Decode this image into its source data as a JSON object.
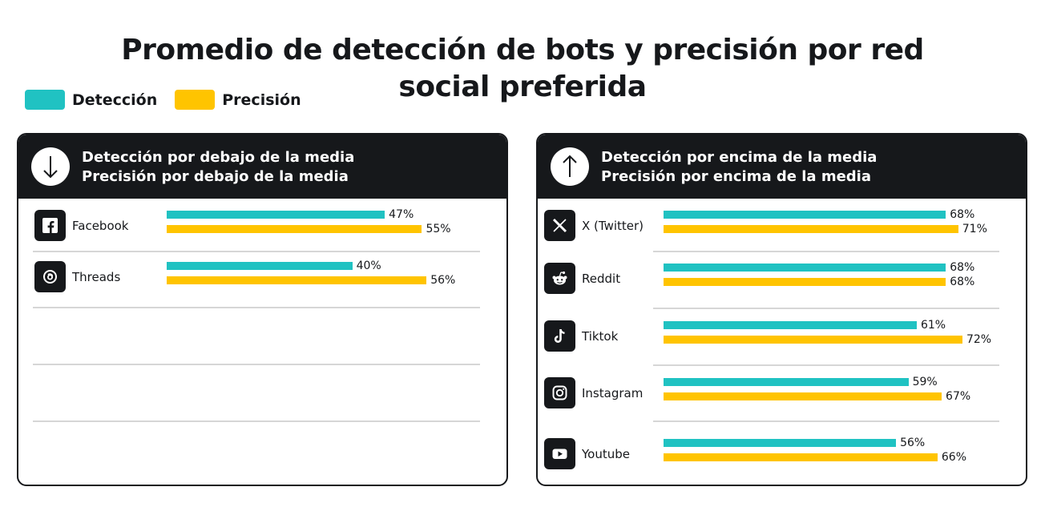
{
  "title": {
    "line1": "Promedio de detección de bots y precisión por red",
    "line2": "social preferida"
  },
  "legend": [
    {
      "label": "Detección",
      "color": "#20c2c2"
    },
    {
      "label": "Precisión",
      "color": "#ffc400"
    }
  ],
  "panels": [
    {
      "header_line1": "Detección por debajo de la media",
      "header_line2": "Precisión por debajo de la media",
      "header_icon": "arrow-down-icon"
    },
    {
      "header_line1": "Detección por encima de la media",
      "header_line2": "Precisión por encima de la media",
      "header_icon": "arrow-up-icon"
    }
  ],
  "chart_data": {
    "type": "bar",
    "orientation": "horizontal",
    "series_names": [
      "Detección",
      "Precisión"
    ],
    "groups": [
      {
        "name": "Detección por debajo de la media / Precisión por debajo de la media",
        "items": [
          {
            "platform": "Facebook",
            "icon": "facebook-icon",
            "deteccion": 47,
            "precision": 55,
            "deteccion_label": "47%",
            "precision_label": "55%"
          },
          {
            "platform": "Threads",
            "icon": "threads-icon",
            "deteccion": 40,
            "precision": 56,
            "deteccion_label": "40%",
            "precision_label": "56%"
          }
        ]
      },
      {
        "name": "Detección por encima de la media / Precisión por encima de la media",
        "items": [
          {
            "platform": "X (Twitter)",
            "icon": "x-twitter-icon",
            "deteccion": 68,
            "precision": 71,
            "deteccion_label": "68%",
            "precision_label": "71%"
          },
          {
            "platform": "Reddit",
            "icon": "reddit-icon",
            "deteccion": 68,
            "precision": 68,
            "deteccion_label": "68%",
            "precision_label": "68%"
          },
          {
            "platform": "Tiktok",
            "icon": "tiktok-icon",
            "deteccion": 61,
            "precision": 72,
            "deteccion_label": "61%",
            "precision_label": "72%"
          },
          {
            "platform": "Instagram",
            "icon": "instagram-icon",
            "deteccion": 59,
            "precision": 67,
            "deteccion_label": "59%",
            "precision_label": "67%"
          },
          {
            "platform": "Youtube",
            "icon": "youtube-icon",
            "deteccion": 56,
            "precision": 66,
            "deteccion_label": "56%",
            "precision_label": "66%"
          }
        ]
      }
    ],
    "colors": {
      "deteccion": "#20c2c2",
      "precision": "#ffc400"
    },
    "xlim": [
      0,
      100
    ],
    "grid": false,
    "legend_position": "top-left"
  }
}
